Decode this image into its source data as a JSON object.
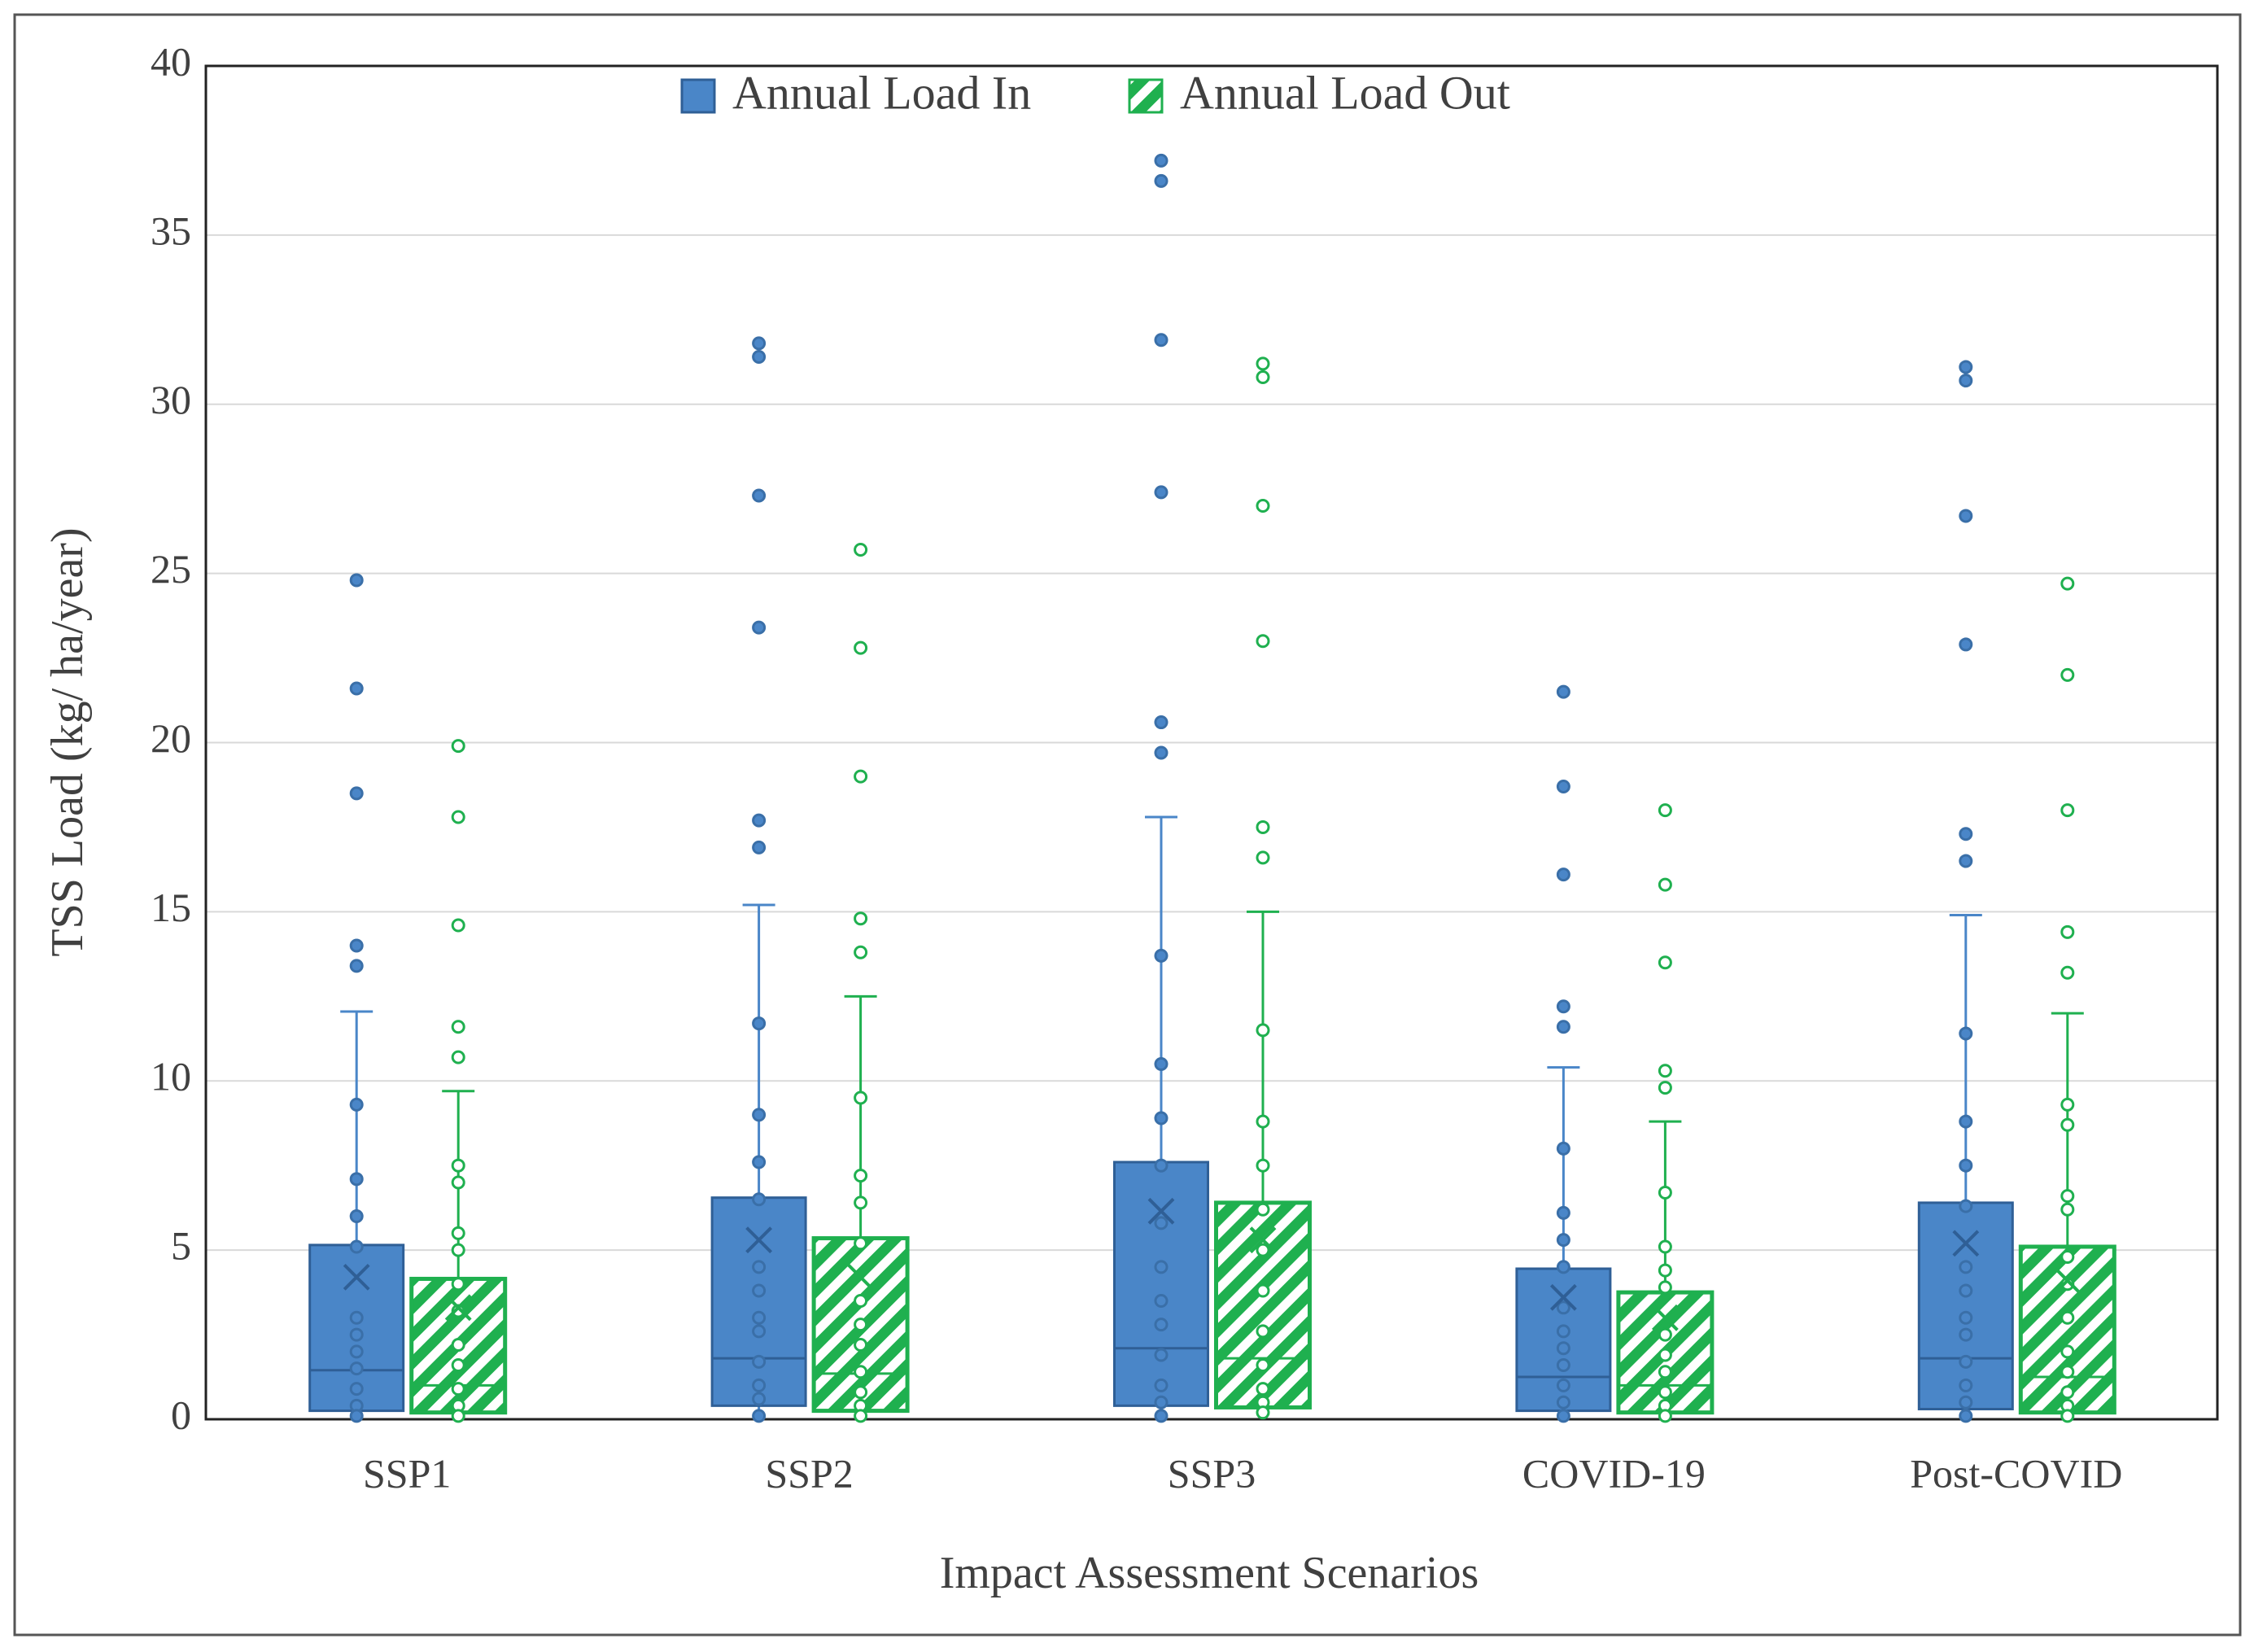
{
  "chart_data": {
    "type": "box",
    "x_label": "Impact Assessment Scenarios",
    "y_label": "TSS Load (kg/ ha/year)",
    "categories": [
      "SSP1",
      "SSP2",
      "SSP3",
      "COVID-19",
      "Post-COVID"
    ],
    "ylim": [
      0,
      40
    ],
    "yticks": [
      0,
      5,
      10,
      15,
      20,
      25,
      30,
      35,
      40
    ],
    "grid": true,
    "legend": "top",
    "series": [
      {
        "name": "Annual Load In",
        "color": "#4a86c8",
        "fill": "solid",
        "min": [
          0,
          0,
          0,
          0,
          0
        ],
        "q1": [
          0.25,
          0.4,
          0.4,
          0.25,
          0.3
        ],
        "median": [
          1.45,
          1.8,
          2.1,
          1.25,
          1.8
        ],
        "q3": [
          5.15,
          6.55,
          7.6,
          4.45,
          6.4
        ],
        "max": [
          12.05,
          15.2,
          17.8,
          10.4,
          14.9
        ],
        "mean": [
          4.2,
          5.3,
          6.15,
          3.6,
          5.2
        ],
        "points": [
          [
            24.8,
            21.6,
            18.5,
            14.0,
            13.4,
            9.3,
            7.1,
            6.0,
            5.1,
            3.0,
            2.5,
            2.0,
            1.5,
            0.9,
            0.4,
            0.1
          ],
          [
            31.8,
            31.4,
            27.3,
            23.4,
            17.7,
            16.9,
            11.7,
            9.0,
            7.6,
            6.5,
            4.5,
            3.8,
            3.0,
            2.6,
            1.7,
            1.0,
            0.6,
            0.1
          ],
          [
            37.2,
            36.6,
            31.9,
            27.4,
            20.6,
            19.7,
            13.7,
            10.5,
            8.9,
            7.5,
            5.8,
            4.5,
            3.5,
            2.8,
            1.9,
            1.0,
            0.5,
            0.1
          ],
          [
            21.5,
            18.7,
            16.1,
            12.2,
            11.6,
            8.0,
            6.1,
            5.3,
            4.5,
            3.3,
            2.6,
            2.1,
            1.6,
            1.0,
            0.5,
            0.1
          ],
          [
            31.1,
            30.7,
            26.7,
            22.9,
            17.3,
            16.5,
            11.4,
            8.8,
            7.5,
            6.3,
            4.5,
            3.8,
            3.0,
            2.5,
            1.7,
            1.0,
            0.5,
            0.1
          ]
        ]
      },
      {
        "name": "Annual Load Out",
        "color": "#1fb04f",
        "fill": "hatched",
        "min": [
          0,
          0,
          0,
          0,
          0
        ],
        "q1": [
          0.2,
          0.25,
          0.35,
          0.2,
          0.2
        ],
        "median": [
          1.0,
          1.35,
          1.8,
          1.0,
          1.25
        ],
        "q3": [
          4.15,
          5.35,
          6.4,
          3.75,
          5.1
        ],
        "max": [
          9.7,
          12.5,
          15.0,
          8.8,
          12.0
        ],
        "mean": [
          3.3,
          4.2,
          5.3,
          3.0,
          4.1
        ],
        "points": [
          [
            19.9,
            17.8,
            14.6,
            11.6,
            10.7,
            7.5,
            7.0,
            5.5,
            5.0,
            4.0,
            3.2,
            2.2,
            1.6,
            0.9,
            0.4,
            0.1
          ],
          [
            25.7,
            22.8,
            19.0,
            14.8,
            13.8,
            9.5,
            7.2,
            6.4,
            5.2,
            3.5,
            2.8,
            2.2,
            1.4,
            0.8,
            0.4,
            0.1
          ],
          [
            31.2,
            30.8,
            27.0,
            23.0,
            17.5,
            16.6,
            11.5,
            8.8,
            7.5,
            6.2,
            5.0,
            3.8,
            2.6,
            1.6,
            0.9,
            0.5,
            0.2
          ],
          [
            18.0,
            15.8,
            13.5,
            10.3,
            9.8,
            6.7,
            5.1,
            4.4,
            3.9,
            2.5,
            1.9,
            1.4,
            0.8,
            0.4,
            0.1
          ],
          [
            24.7,
            22.0,
            18.0,
            14.4,
            13.2,
            9.3,
            8.7,
            6.6,
            6.2,
            4.8,
            4.0,
            3.0,
            2.0,
            1.4,
            0.8,
            0.4,
            0.1
          ]
        ]
      }
    ]
  }
}
